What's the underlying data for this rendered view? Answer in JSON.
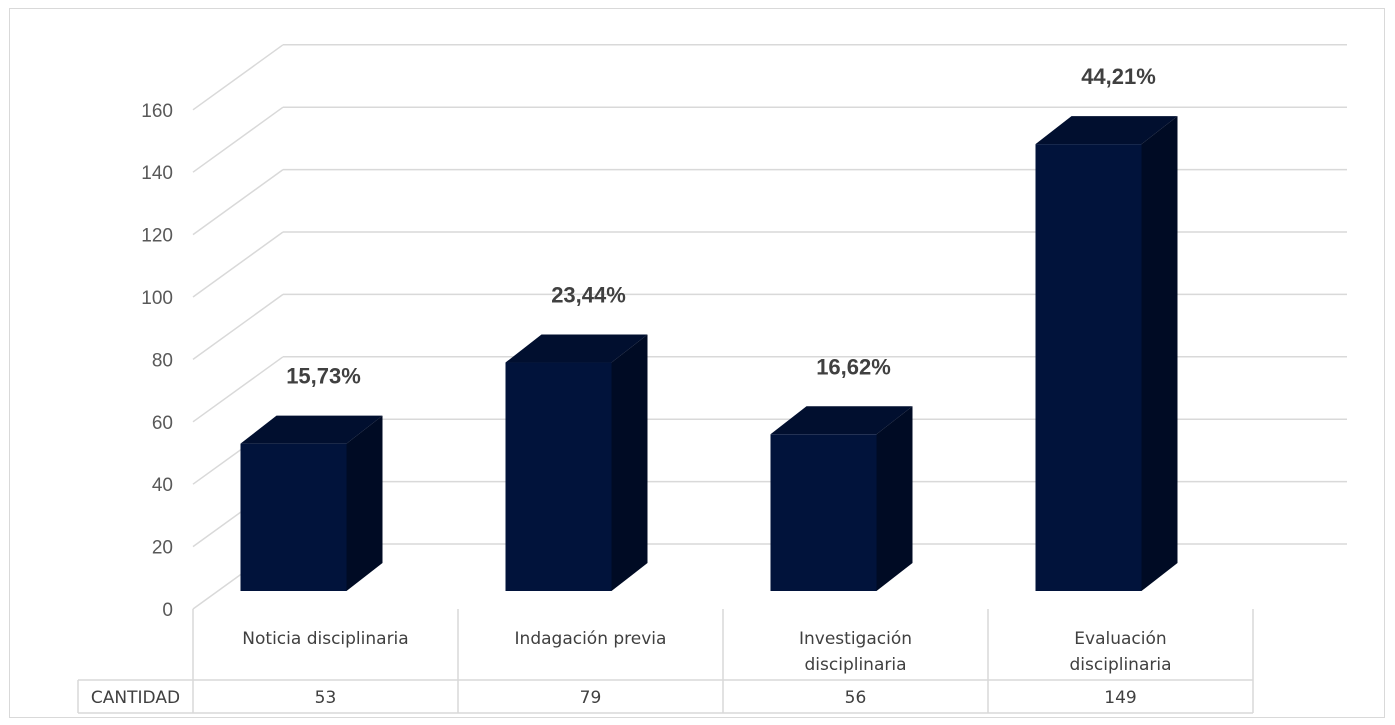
{
  "chart_data": {
    "type": "bar",
    "style": "3d-column-with-data-table",
    "categories": [
      "Noticia disciplinaria",
      "Indagación previa",
      "Investigación disciplinaria",
      "Evaluación disciplinaria"
    ],
    "series": [
      {
        "name": "CANTIDAD",
        "values": [
          53,
          79,
          56,
          149
        ],
        "data_labels": [
          "15,73%",
          "23,44%",
          "16,62%",
          "44,21%"
        ]
      }
    ],
    "yticks": [
      0,
      20,
      40,
      60,
      80,
      100,
      120,
      140,
      160
    ],
    "ylim": [
      0,
      180
    ],
    "grid": true,
    "legend": "none",
    "colors": {
      "bar_front": "#01133b",
      "bar_top": "#010f2f",
      "bar_side": "#000b24",
      "grid": "#d9d9d9",
      "text": "#404040",
      "tick_text": "#595959"
    }
  }
}
